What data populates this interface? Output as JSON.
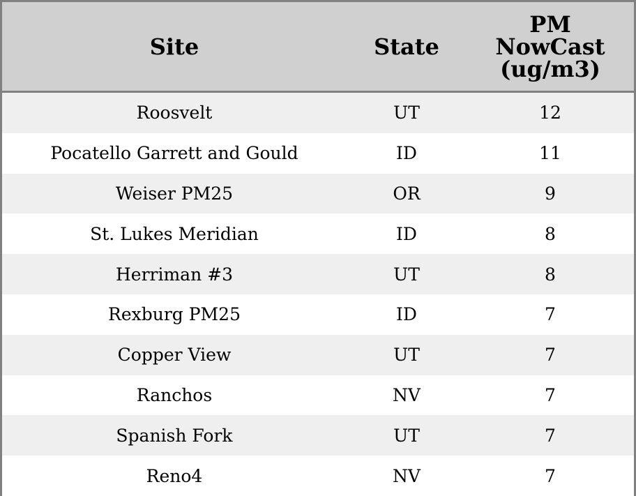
{
  "table": {
    "headers": [
      "Site",
      "State",
      "PM NowCast (ug/m3)"
    ],
    "header_lines": [
      "PM",
      "NowCast",
      "(ug/m3)"
    ],
    "rows": [
      [
        "Roosvelt",
        "UT",
        "12"
      ],
      [
        "Pocatello Garrett and Gould",
        "ID",
        "11"
      ],
      [
        "Weiser PM25",
        "OR",
        "9"
      ],
      [
        "St. Lukes Meridian",
        "ID",
        "8"
      ],
      [
        "Herriman #3",
        "UT",
        "8"
      ],
      [
        "Rexburg PM25",
        "ID",
        "7"
      ],
      [
        "Copper View",
        "UT",
        "7"
      ],
      [
        "Ranchos",
        "NV",
        "7"
      ],
      [
        "Spanish Fork",
        "UT",
        "7"
      ],
      [
        "Reno4",
        "NV",
        "7"
      ]
    ]
  },
  "colors": {
    "header_bg": "#d0d0d0",
    "stripe": "#efefef",
    "border": "#808080"
  }
}
